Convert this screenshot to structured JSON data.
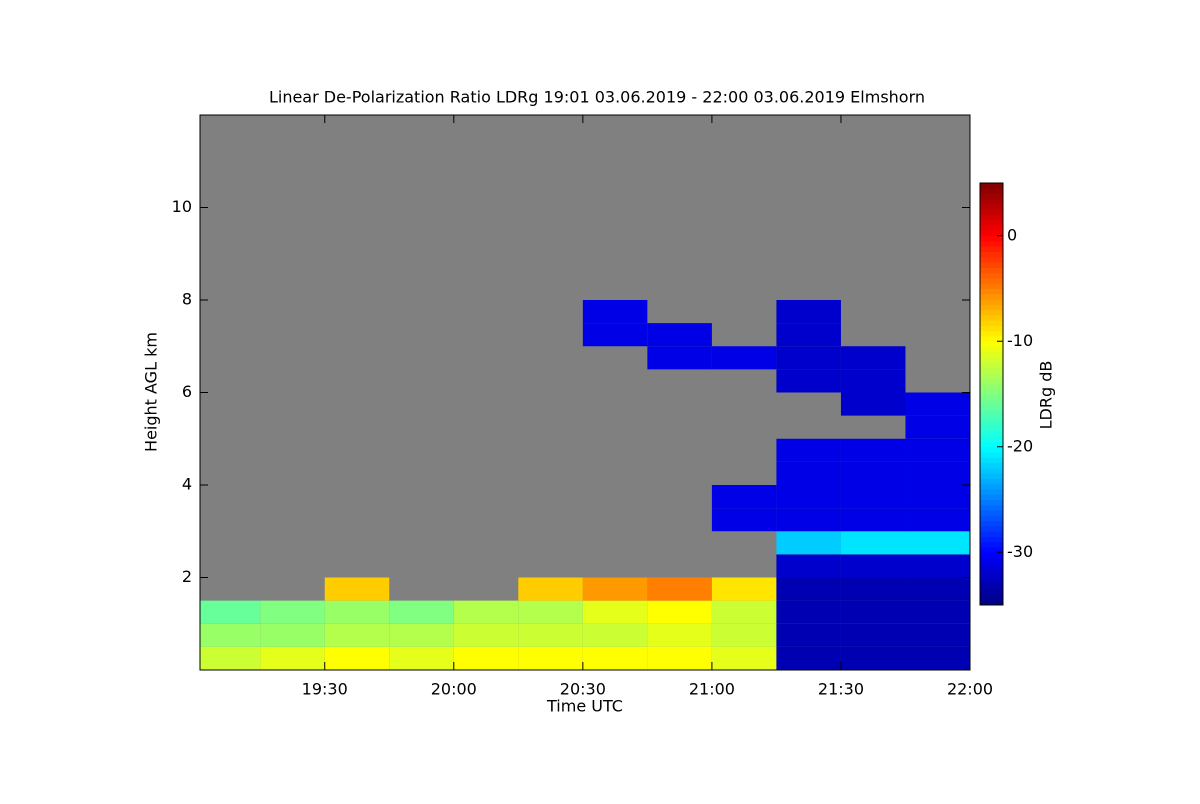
{
  "chart_data": {
    "type": "heatmap",
    "title": "Linear De-Polarization Ratio LDRg   19:01 03.06.2019 - 22:00 03.06.2019 Elmshorn",
    "xlabel": "Time UTC",
    "ylabel": "Height AGL km",
    "xlim": [
      19.0167,
      22.0
    ],
    "xticks": [
      {
        "value": 19.5,
        "label": "19:30"
      },
      {
        "value": 20.0,
        "label": "20:00"
      },
      {
        "value": 20.5,
        "label": "20:30"
      },
      {
        "value": 21.0,
        "label": "21:00"
      },
      {
        "value": 21.5,
        "label": "21:30"
      },
      {
        "value": 22.0,
        "label": "22:00"
      }
    ],
    "ylim": [
      0,
      12
    ],
    "yticks": [
      2,
      4,
      6,
      8,
      10
    ],
    "x_edges": [
      19.0,
      19.25,
      19.5,
      19.75,
      20.0,
      20.25,
      20.5,
      20.75,
      21.0,
      21.25,
      21.5,
      21.75,
      22.0
    ],
    "y_edges": [
      0,
      0.5,
      1,
      1.5,
      2,
      2.5,
      3,
      3.5,
      4,
      4.5,
      5,
      5.5,
      6,
      6.5,
      7,
      7.5,
      8
    ],
    "values": [
      [
        -12,
        -11,
        -10,
        -11,
        -10,
        -10,
        -10,
        -10,
        -11,
        -33,
        -33,
        -33
      ],
      [
        -14,
        -14,
        -13,
        -13,
        -12,
        -12,
        -12,
        -11,
        -12,
        -33,
        -33,
        -33
      ],
      [
        -16,
        -15,
        -14,
        -15,
        -13,
        -13,
        -11,
        -10,
        -12,
        -33,
        -33,
        -33
      ],
      [
        null,
        null,
        -8,
        null,
        null,
        -8,
        -6,
        -5,
        -9,
        -33,
        -33,
        -33
      ],
      [
        null,
        null,
        null,
        null,
        null,
        null,
        null,
        null,
        null,
        -32,
        -32,
        -32
      ],
      [
        null,
        null,
        null,
        null,
        null,
        null,
        null,
        null,
        null,
        -22,
        -21,
        -21
      ],
      [
        null,
        null,
        null,
        null,
        null,
        null,
        null,
        null,
        -31,
        -31,
        -31,
        -31
      ],
      [
        null,
        null,
        null,
        null,
        null,
        null,
        null,
        null,
        -31,
        -31,
        -31,
        -31
      ],
      [
        null,
        null,
        null,
        null,
        null,
        null,
        null,
        null,
        null,
        -31,
        -31,
        -31
      ],
      [
        null,
        null,
        null,
        null,
        null,
        null,
        null,
        null,
        null,
        -31,
        -31,
        -31
      ],
      [
        null,
        null,
        null,
        null,
        null,
        null,
        null,
        null,
        null,
        null,
        null,
        -31
      ],
      [
        null,
        null,
        null,
        null,
        null,
        null,
        null,
        null,
        null,
        null,
        -32,
        -31
      ],
      [
        null,
        null,
        null,
        null,
        null,
        null,
        null,
        null,
        null,
        -32,
        -32,
        null
      ],
      [
        null,
        null,
        null,
        null,
        null,
        null,
        null,
        -31,
        -31,
        -32,
        -32,
        null
      ],
      [
        null,
        null,
        null,
        null,
        null,
        null,
        -31,
        -31,
        null,
        -32,
        null,
        null
      ],
      [
        null,
        null,
        null,
        null,
        null,
        null,
        -31,
        null,
        null,
        -32,
        null,
        null
      ]
    ],
    "nodata_color": "#808080",
    "colorbar": {
      "label": "LDRg dB",
      "lim": [
        -35,
        5
      ],
      "ticks": [
        0,
        -10,
        -20,
        -30
      ]
    }
  }
}
